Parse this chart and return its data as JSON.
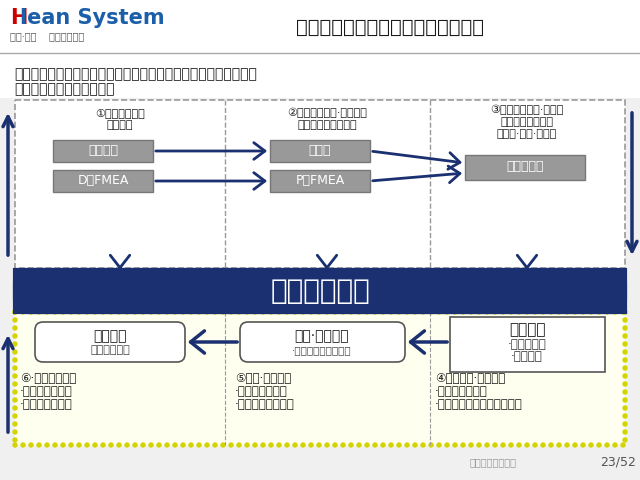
{
  "bg_color": "#f0f0f0",
  "title": "１０、自工序完结的推进方法（２）",
  "title_color": "#1a1a1a",
  "subtitle_line1": "＜掌握内容＞・・・・要使相关的管理监督者、技术人员和作业者",
  "subtitle_line2": "掌握自工序完结活动的内容",
  "subtitle_color": "#1a1a1a",
  "box1_title_l1": "①规定质量特性",
  "box1_title_l2": "特殊特性",
  "box2_title_l1": "②规定质量特性·特殊特性",
  "box2_title_l2": "管理方法、防错装置",
  "box3_title_l1": "③规定质量特性·特殊特",
  "box3_title_l2": "性的具体管理方法",
  "box3_title_l3": "（作业·条件·结果）",
  "center_box_text": "质量保证体系",
  "center_box_bg": "#1a3070",
  "center_box_fg": "#ffffff",
  "item_sheji": "设计图纸",
  "item_DFMEA": "D・FMEA",
  "item_jianchafa": "检查法",
  "item_PFMEA": "P・FMEA",
  "item_QC": "ＱＣ工序表",
  "bottom_box1_l1": "出厂管理",
  "bottom_box1_l2": "（工序检查）",
  "bottom_box2_l1": "生产·质量管理",
  "bottom_box2_l2": "·５Ｍ的管理（变化）",
  "bottom_box3_l1": "作业标准",
  "bottom_box3_l2": "·作业指导书",
  "bottom_box3_l3": "·要领书等",
  "note6_l1": "⑥·规定检查项目",
  "note6_l2": "·规定检查的５Ｍ",
  "note6_l3": "·作业指导、训练",
  "note5_l1": "⑤工序·质量管理",
  "note5_l2": "·作业指导、训练",
  "note5_l3": "·结果的评价与对策",
  "note4_l1": "④质量特性·特殊特性",
  "note4_l2": "·营造质量的要点",
  "note4_l3": "·质量确认作业（每个步骤）",
  "footer_text": "23/52",
  "footer_watermark": "精益生产促进中心",
  "dash_color": "#999999",
  "yellow_dot_color": "#e8e800",
  "arrow_color": "#1a3070",
  "gray_box_bg": "#999999",
  "white": "#ffffff",
  "dark": "#1a1a1a",
  "logo_H_color": "#cc0000",
  "logo_text_color": "#1a5fa8",
  "logo_sub_color": "#555555"
}
